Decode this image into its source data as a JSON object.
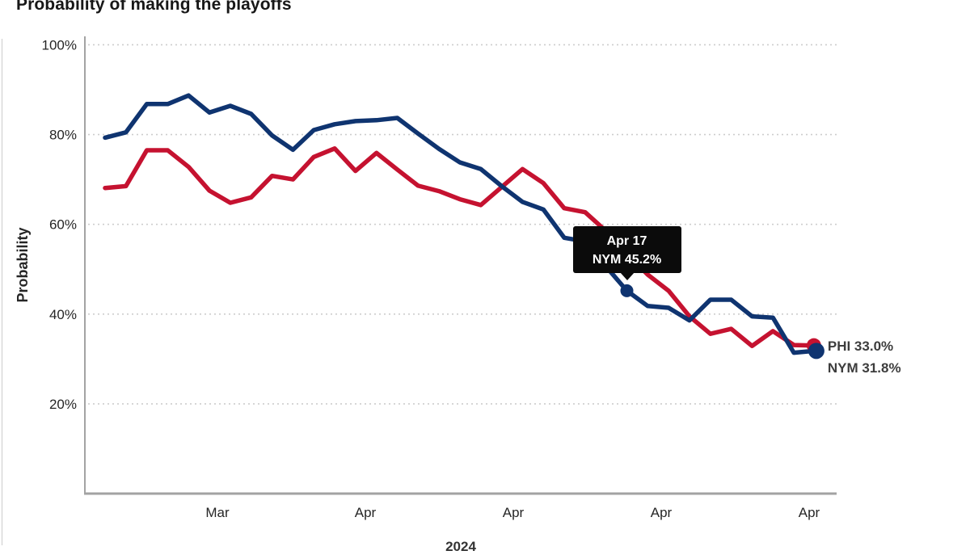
{
  "page": {
    "title": "Probability of making the playoffs",
    "year_footer": "2024"
  },
  "colors": {
    "nym_blue": "#0f3470",
    "phi_red": "#c51230",
    "grid": "#cdcdcd",
    "axis": "#a3a3a3",
    "tick_text": "#262626",
    "end_label_text": "#3d3d3d",
    "tooltip_bg": "#0b0b0b",
    "tooltip_text": "#ffffff"
  },
  "tooltip": {
    "date": "Apr 17",
    "value": "NYM 45.2%",
    "series": "NYM",
    "point_index": 25,
    "point_value": 45.2
  },
  "end_labels": {
    "phi": "PHI 33.0%",
    "nym": "NYM 31.8%"
  },
  "chart_data": {
    "type": "line",
    "title": "Probability of making the playoffs",
    "ylabel": "Probability",
    "ylim": [
      0,
      100
    ],
    "grid": "dotted-horizontal",
    "yticks": [
      {
        "value": 100,
        "label": "100%"
      },
      {
        "value": 80,
        "label": "80%"
      },
      {
        "value": 60,
        "label": "60%"
      },
      {
        "value": 40,
        "label": "40%"
      },
      {
        "value": 20,
        "label": "20%"
      }
    ],
    "xtick_labels": [
      "Mar",
      "Apr",
      "Apr",
      "Apr",
      "Apr"
    ],
    "x_year_label": "2024",
    "x_note": "daily points, late March through April 2024",
    "series": [
      {
        "name": "PHI",
        "color": "#c51230",
        "end_value": 33.0,
        "values": [
          68.1,
          68.5,
          76.5,
          76.5,
          72.8,
          67.5,
          64.8,
          66.0,
          70.8,
          70.0,
          75.0,
          76.9,
          71.9,
          75.9,
          72.2,
          68.6,
          67.4,
          65.6,
          64.3,
          68.3,
          72.3,
          69.2,
          63.6,
          62.7,
          58.5,
          53.5,
          48.8,
          45.2,
          39.5,
          35.6,
          36.7,
          32.9,
          36.2,
          33.1,
          33.0
        ]
      },
      {
        "name": "NYM",
        "color": "#0f3470",
        "end_value": 31.8,
        "values": [
          79.3,
          80.5,
          86.8,
          86.8,
          88.7,
          84.9,
          86.4,
          84.6,
          79.8,
          76.6,
          81.0,
          82.3,
          83.0,
          83.2,
          83.7,
          80.2,
          76.8,
          73.8,
          72.3,
          68.5,
          65.0,
          63.3,
          57.0,
          56.2,
          50.6,
          45.2,
          41.8,
          41.4,
          38.6,
          43.2,
          43.2,
          39.5,
          39.2,
          31.4,
          31.8
        ]
      }
    ],
    "annotations": [
      {
        "type": "tooltip",
        "text": [
          "Apr 17",
          "NYM 45.2%"
        ],
        "series": "NYM",
        "point_index": 25
      },
      {
        "type": "series-end-label",
        "text": "PHI 33.0%"
      },
      {
        "type": "series-end-label",
        "text": "NYM 31.8%"
      }
    ]
  }
}
